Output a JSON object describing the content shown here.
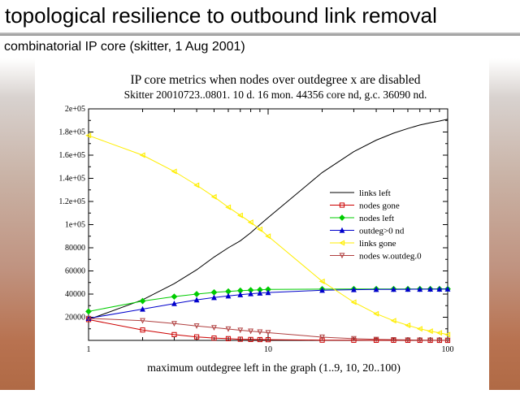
{
  "slide": {
    "title": "topological resilience to outbound link removal",
    "subtitle": "combinatorial IP core (skitter, 1 Aug 2001)"
  },
  "chart_data": {
    "type": "line",
    "title": "IP core metrics when nodes over outdegree x are disabled",
    "subtitle": "Skitter 20010723..0801. 10 d. 16 mon. 44356 core nd, g.c. 36090 nd.",
    "xlabel": "maximum outdegree left in the graph (1..9, 10, 20..100)",
    "ylabel": "",
    "x_scale": "log",
    "xlim": [
      1,
      100
    ],
    "ylim": [
      0,
      200000
    ],
    "x_ticks": [
      "1",
      "10",
      "100"
    ],
    "y_ticks": [
      "20000",
      "40000",
      "60000",
      "80000",
      "1e+05",
      "1.2e+05",
      "1.4e+05",
      "1.6e+05",
      "1.8e+05",
      "2e+05"
    ],
    "grid": false,
    "legend_position": "right-middle",
    "x": [
      1,
      2,
      3,
      4,
      5,
      6,
      7,
      8,
      9,
      10,
      20,
      30,
      40,
      50,
      60,
      70,
      80,
      90,
      100
    ],
    "series": [
      {
        "name": "links left",
        "color": "#000000",
        "marker": "none",
        "values": [
          18000,
          35000,
          49000,
          61000,
          72000,
          80000,
          86000,
          93000,
          100000,
          106000,
          145000,
          163000,
          173000,
          179000,
          183000,
          186000,
          188000,
          189500,
          191000
        ]
      },
      {
        "name": "nodes gone",
        "color": "#cc0000",
        "marker": "square",
        "values": [
          18000,
          9000,
          5000,
          3000,
          2000,
          1500,
          1000,
          800,
          700,
          600,
          200,
          120,
          90,
          70,
          60,
          50,
          40,
          30,
          20
        ]
      },
      {
        "name": "nodes left",
        "color": "#00cc00",
        "marker": "diamond",
        "values": [
          25000,
          34000,
          37800,
          40000,
          41500,
          42300,
          43000,
          43400,
          43700,
          44000,
          44300,
          44400,
          44400,
          44400,
          44400,
          44400,
          44400,
          44400,
          44400
        ]
      },
      {
        "name": "outdeg>0 nd",
        "color": "#0000cc",
        "marker": "triangle-up",
        "values": [
          19000,
          27000,
          31800,
          35000,
          37000,
          38400,
          39500,
          40300,
          40900,
          41300,
          43300,
          43800,
          44000,
          44100,
          44150,
          44200,
          44250,
          44300,
          44350
        ]
      },
      {
        "name": "links gone",
        "color": "#ffee00",
        "marker": "triangle-left",
        "values": [
          177000,
          160000,
          146000,
          134000,
          124000,
          115000,
          108000,
          102000,
          96000,
          90000,
          51000,
          33000,
          23000,
          17000,
          13000,
          10000,
          8000,
          6500,
          5000
        ]
      },
      {
        "name": "nodes w.outdeg.0",
        "color": "#b04040",
        "marker": "triangle-down",
        "values": [
          19000,
          17000,
          14500,
          12500,
          11000,
          9800,
          8800,
          8000,
          7300,
          6700,
          2800,
          1500,
          900,
          600,
          400,
          300,
          200,
          150,
          100
        ]
      }
    ]
  }
}
